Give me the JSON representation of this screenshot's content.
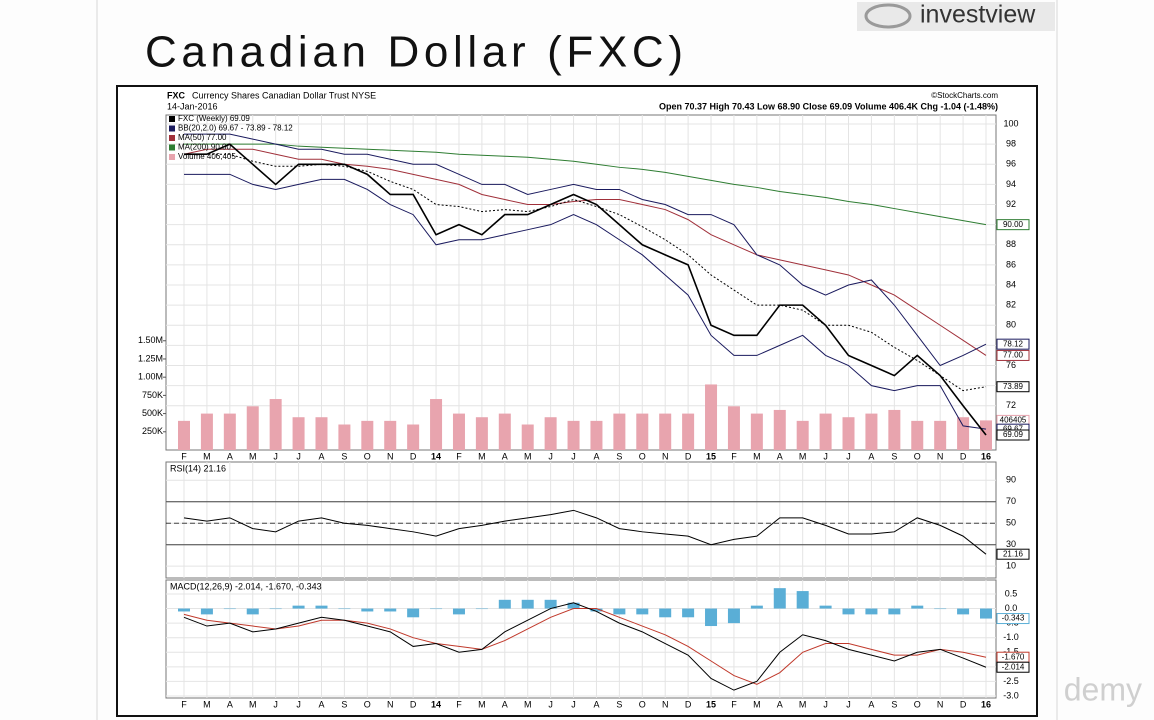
{
  "slide": {
    "title": "Canadian Dollar (FXC)",
    "logo": "investview",
    "watermark": "demy"
  },
  "chart_data": [
    {
      "type": "line",
      "title": "FXC",
      "subtitle": "Currency Shares Canadian Dollar Trust NYSE",
      "date": "14-Jan-2016",
      "credit": "©StockCharts.com",
      "quote": "Open 70.37  High 70.43  Low 68.90  Close 69.09  Volume 406.4K  Chg -1.04 (-1.48%)",
      "categories": [
        "F",
        "M",
        "A",
        "M",
        "J",
        "J",
        "A",
        "S",
        "O",
        "N",
        "D",
        "14",
        "F",
        "M",
        "A",
        "M",
        "J",
        "J",
        "A",
        "S",
        "O",
        "N",
        "D",
        "15",
        "F",
        "M",
        "A",
        "M",
        "J",
        "J",
        "A",
        "S",
        "O",
        "N",
        "D",
        "16"
      ],
      "ylim": [
        67.6,
        100.9
      ],
      "yticks": [
        72,
        74,
        76,
        78,
        80,
        82,
        84,
        86,
        88,
        90,
        92,
        94,
        96,
        98,
        100
      ],
      "y2lim": [
        0,
        4600000
      ],
      "y2ticks": [
        {
          "value": 250000,
          "label": "250K"
        },
        {
          "value": 500000,
          "label": "500K"
        },
        {
          "value": 750000,
          "label": "750K"
        },
        {
          "value": 1000000,
          "label": "1.00M"
        },
        {
          "value": 1250000,
          "label": "1.25M"
        },
        {
          "value": 1500000,
          "label": "1.50M"
        }
      ],
      "grid": true,
      "series": [
        {
          "name": "Volume 406,405",
          "color": "#e8a4ae",
          "style": "bar",
          "axis": "y2",
          "tag": "406405",
          "values": [
            400000,
            500000,
            500000,
            600000,
            700000,
            450000,
            450000,
            350000,
            400000,
            400000,
            350000,
            700000,
            500000,
            450000,
            500000,
            350000,
            450000,
            400000,
            400000,
            500000,
            500000,
            500000,
            500000,
            900000,
            600000,
            500000,
            550000,
            400000,
            500000,
            450000,
            500000,
            550000,
            400000,
            400000,
            450000,
            406405
          ]
        },
        {
          "name": "MA(200) 90.00",
          "color": "#2e7d32",
          "style": "line",
          "tag": "90.00",
          "values": [
            98,
            98,
            98,
            98,
            98,
            97.8,
            97.7,
            97.6,
            97.5,
            97.4,
            97.3,
            97.2,
            97,
            96.9,
            96.8,
            96.7,
            96.5,
            96.3,
            96,
            95.7,
            95.5,
            95.2,
            94.8,
            94.4,
            94,
            93.7,
            93.3,
            93,
            92.7,
            92.3,
            92,
            91.6,
            91.2,
            90.8,
            90.4,
            90
          ]
        },
        {
          "name": "MA(50) 77.00",
          "color": "#a0303a",
          "style": "line",
          "tag": "77.00",
          "values": [
            97,
            97.5,
            97.5,
            97.5,
            97,
            96.5,
            96.5,
            96,
            95.8,
            95.5,
            95,
            94.5,
            94,
            93,
            92.5,
            92,
            92,
            92.3,
            92.5,
            92.5,
            92,
            91.5,
            90.5,
            89,
            88,
            87,
            86.5,
            86,
            85.5,
            85,
            84,
            83,
            81.5,
            80,
            78.5,
            77
          ]
        },
        {
          "name": "BB(20,2.0) 69.67 - 73.89 - 78.12",
          "color": "#1a1a5e",
          "style": "line",
          "tag": "78.12",
          "values": [
            99,
            99,
            99,
            98.5,
            98,
            97.5,
            97.5,
            97,
            97,
            96.5,
            96,
            96,
            95,
            94,
            94,
            93,
            93.5,
            94,
            93.5,
            93.5,
            92.5,
            92,
            91,
            91,
            90,
            87,
            86,
            84,
            83,
            84,
            84.5,
            82,
            79,
            76,
            77,
            78.12
          ]
        },
        {
          "color": "#000000",
          "style": "dotted",
          "tag": "73.89",
          "values": [
            97,
            97,
            97,
            96.3,
            95.8,
            95.8,
            96,
            95.8,
            95.3,
            94.3,
            93.5,
            92,
            91.8,
            91.3,
            91.5,
            91.3,
            91.8,
            92.5,
            91.8,
            91,
            89.8,
            88.5,
            87,
            85,
            83.5,
            82,
            82,
            81.5,
            80,
            80,
            79.3,
            77.8,
            76.5,
            75,
            73.5,
            73.89
          ]
        },
        {
          "color": "#1a1a5e",
          "style": "line",
          "tag": "69.67",
          "values": [
            95,
            95,
            95,
            94,
            93.5,
            94,
            94.5,
            94.5,
            93.5,
            92,
            91,
            88,
            88.5,
            88.5,
            89,
            89.5,
            90,
            91,
            90,
            88.5,
            87,
            85,
            83,
            79,
            77,
            77,
            78,
            79,
            77,
            76,
            74,
            73.5,
            74,
            74,
            70,
            69.67
          ]
        },
        {
          "name": "FXC (Weekly) 69.09",
          "color": "#000000",
          "style": "line",
          "tag": "69.09",
          "values": [
            97,
            97,
            98,
            96,
            94,
            96,
            96,
            96,
            95,
            93,
            93,
            89,
            90,
            89,
            91,
            91,
            92,
            93,
            92,
            90,
            88,
            87,
            86,
            80,
            79,
            79,
            82,
            82,
            80,
            77,
            76,
            75,
            77,
            75,
            72,
            69.09
          ]
        }
      ]
    },
    {
      "type": "line",
      "title": "RSI(14) 21.16",
      "ylim": [
        -1,
        107
      ],
      "yticks": [
        10,
        30,
        50,
        70,
        90
      ],
      "levels": [
        70,
        50,
        30
      ],
      "dashed_level": 50,
      "series": [
        {
          "color": "#000000",
          "style": "line",
          "tag": "21.16",
          "values": [
            55,
            52,
            55,
            45,
            42,
            52,
            55,
            50,
            48,
            45,
            42,
            38,
            45,
            48,
            52,
            55,
            58,
            62,
            55,
            45,
            42,
            40,
            38,
            30,
            35,
            38,
            55,
            55,
            48,
            40,
            40,
            42,
            55,
            48,
            38,
            21.16
          ]
        }
      ]
    },
    {
      "type": "line",
      "title": "MACD(12,26,9) -2.014, -1.670, -0.343",
      "ylim": [
        -3.07,
        0.98
      ],
      "yticks": [
        -2.5,
        {
          "value": -3,
          "label": "-3.0"
        },
        {
          "value": -2,
          "label": "-2.0"
        },
        -1.5,
        {
          "value": -1,
          "label": "-1.0"
        },
        -0.5,
        {
          "value": 0,
          "label": "0.0"
        },
        0.5
      ],
      "series": [
        {
          "color": "#5aaed6",
          "style": "bar",
          "tag": "-0.343",
          "values": [
            -0.1,
            -0.2,
            0,
            -0.2,
            0,
            0.1,
            0.1,
            0,
            -0.1,
            -0.1,
            -0.3,
            0,
            -0.2,
            0,
            0.3,
            0.3,
            0.3,
            0.2,
            -0.1,
            -0.2,
            -0.2,
            -0.3,
            -0.3,
            -0.6,
            -0.5,
            0.1,
            0.7,
            0.6,
            0.1,
            -0.2,
            -0.2,
            -0.2,
            0.1,
            0,
            -0.2,
            -0.343
          ]
        },
        {
          "color": "#c0392b",
          "style": "line",
          "tag": "-1.670",
          "values": [
            -0.2,
            -0.4,
            -0.5,
            -0.6,
            -0.7,
            -0.6,
            -0.4,
            -0.4,
            -0.5,
            -0.7,
            -1,
            -1.2,
            -1.3,
            -1.4,
            -1.1,
            -0.7,
            -0.3,
            0,
            0,
            -0.3,
            -0.6,
            -0.9,
            -1.3,
            -1.8,
            -2.3,
            -2.6,
            -2.2,
            -1.5,
            -1.2,
            -1.2,
            -1.4,
            -1.6,
            -1.6,
            -1.4,
            -1.5,
            -1.67
          ]
        },
        {
          "color": "#000000",
          "style": "line",
          "tag": "-2.014",
          "values": [
            -0.3,
            -0.6,
            -0.5,
            -0.8,
            -0.7,
            -0.5,
            -0.3,
            -0.4,
            -0.6,
            -0.8,
            -1.3,
            -1.2,
            -1.5,
            -1.4,
            -0.8,
            -0.4,
            0,
            0.2,
            -0.1,
            -0.5,
            -0.8,
            -1.2,
            -1.6,
            -2.4,
            -2.8,
            -2.5,
            -1.5,
            -0.9,
            -1.1,
            -1.4,
            -1.6,
            -1.8,
            -1.5,
            -1.4,
            -1.7,
            -2.014
          ]
        }
      ]
    }
  ]
}
